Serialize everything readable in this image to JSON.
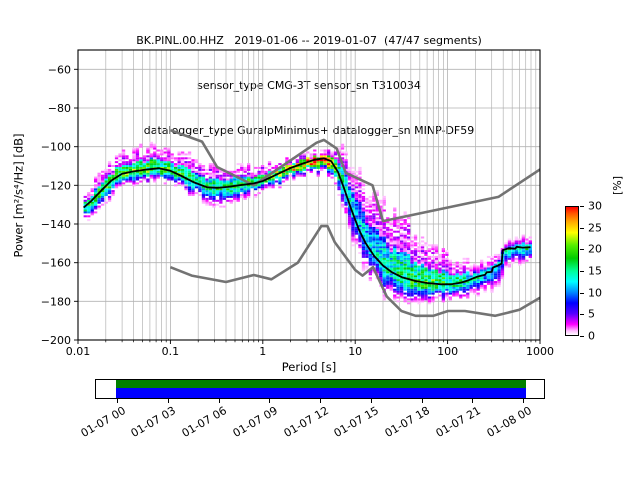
{
  "title": {
    "line1": "BK.PINL.00.HHZ   2019-01-06 -- 2019-01-07  (47/47 segments)",
    "line2": "sensor_type CMG-3T sensor_sn T310034",
    "line3": "datalogger_type GuralpMinimus+ datalogger_sn MINP-DF59"
  },
  "chart_data": {
    "type": "heatmap",
    "title": "BK.PINL.00.HHZ   2019-01-06 -- 2019-01-07  (47/47 segments)",
    "subtitle1": "sensor_type CMG-3T sensor_sn T310034",
    "subtitle2": "datalogger_type GuralpMinimus+ datalogger_sn MINP-DF59",
    "xlabel": "Period [s]",
    "ylabel": "Power [m²/s⁴/Hz] [dB]",
    "xscale": "log",
    "xlim": [
      0.01,
      1000
    ],
    "ylim": [
      -200,
      -50
    ],
    "grid": true,
    "x_tick_labels": [
      "0.01",
      "0.1",
      "1",
      "10",
      "100",
      "1000"
    ],
    "x_tick_values": [
      0.01,
      0.1,
      1,
      10,
      100,
      1000
    ],
    "y_tick_labels": [
      "−60",
      "−80",
      "−100",
      "−120",
      "−140",
      "−160",
      "−180",
      "−200"
    ],
    "y_tick_values": [
      -60,
      -80,
      -100,
      -120,
      -140,
      -160,
      -180,
      -200
    ],
    "colorbar": {
      "label": "[%]",
      "tick_labels": [
        "0",
        "5",
        "10",
        "15",
        "20",
        "25",
        "30"
      ],
      "tick_values": [
        0,
        5,
        10,
        15,
        20,
        25,
        30
      ],
      "range": [
        0,
        30
      ],
      "stops": [
        [
          0,
          "#ffffff"
        ],
        [
          1,
          "#ffbbff"
        ],
        [
          2.5,
          "#ff00ff"
        ],
        [
          5,
          "#5500ff"
        ],
        [
          7.5,
          "#0000ff"
        ],
        [
          10,
          "#0088ff"
        ],
        [
          12.5,
          "#00ffff"
        ],
        [
          15,
          "#00ff99"
        ],
        [
          18,
          "#00cc00"
        ],
        [
          21,
          "#55ee00"
        ],
        [
          24,
          "#ffff00"
        ],
        [
          26.5,
          "#ffaa00"
        ],
        [
          28.5,
          "#ff5500"
        ],
        [
          30,
          "#ff0000"
        ]
      ]
    },
    "noise_models": {
      "color": "#737373",
      "nhnm": [
        [
          0.1,
          -91.5
        ],
        [
          0.22,
          -97.4
        ],
        [
          0.32,
          -110.5
        ],
        [
          0.8,
          -120.0
        ],
        [
          3.8,
          -98.0
        ],
        [
          4.6,
          -96.5
        ],
        [
          6.3,
          -101.0
        ],
        [
          7.9,
          -113.5
        ],
        [
          15.4,
          -120.0
        ],
        [
          20.0,
          -138.5
        ],
        [
          354.8,
          -126.0
        ],
        [
          1000,
          -111.8
        ]
      ],
      "nlnm": [
        [
          0.1,
          -162.36
        ],
        [
          0.17,
          -166.7
        ],
        [
          0.4,
          -170.0
        ],
        [
          0.8,
          -166.4
        ],
        [
          1.24,
          -168.6
        ],
        [
          2.4,
          -159.98
        ],
        [
          4.3,
          -141.1
        ],
        [
          5.0,
          -141.1
        ],
        [
          6.0,
          -149.36
        ],
        [
          10.0,
          -163.79
        ],
        [
          12.0,
          -166.7
        ],
        [
          15.6,
          -162.28
        ],
        [
          21.9,
          -177.43
        ],
        [
          31.6,
          -185.0
        ],
        [
          45.0,
          -187.5
        ],
        [
          70.0,
          -187.5
        ],
        [
          101.0,
          -185.0
        ],
        [
          154.0,
          -185.0
        ],
        [
          328.0,
          -187.5
        ],
        [
          600.0,
          -184.4
        ],
        [
          1000,
          -178.1
        ]
      ]
    },
    "mode_line": {
      "color": "#000000",
      "points": [
        [
          0.0115,
          -131.5
        ],
        [
          0.014,
          -128
        ],
        [
          0.018,
          -122.5
        ],
        [
          0.023,
          -117.5
        ],
        [
          0.03,
          -114
        ],
        [
          0.04,
          -112.8
        ],
        [
          0.055,
          -111.8
        ],
        [
          0.075,
          -111.2
        ],
        [
          0.1,
          -112.5
        ],
        [
          0.13,
          -115
        ],
        [
          0.18,
          -118.5
        ],
        [
          0.25,
          -121
        ],
        [
          0.32,
          -121.3
        ],
        [
          0.42,
          -120.8
        ],
        [
          0.55,
          -120
        ],
        [
          0.8,
          -119
        ],
        [
          1.0,
          -117.8
        ],
        [
          1.4,
          -114.5
        ],
        [
          2.0,
          -111
        ],
        [
          2.8,
          -108.5
        ],
        [
          3.6,
          -106.8
        ],
        [
          4.6,
          -106
        ],
        [
          5.5,
          -107.5
        ],
        [
          6.5,
          -113
        ],
        [
          7.5,
          -121
        ],
        [
          9,
          -132
        ],
        [
          11,
          -143
        ],
        [
          13,
          -150
        ],
        [
          16,
          -156.5
        ],
        [
          20,
          -161.5
        ],
        [
          25,
          -165
        ],
        [
          32,
          -167.5
        ],
        [
          45,
          -169.5
        ],
        [
          60,
          -170.5
        ],
        [
          85,
          -171.2
        ],
        [
          110,
          -171.2
        ],
        [
          140,
          -170.3
        ],
        [
          170,
          -169
        ],
        [
          210,
          -167.2
        ],
        [
          255,
          -166.2
        ],
        [
          265,
          -165
        ],
        [
          300,
          -164.8
        ],
        [
          310,
          -162.5
        ],
        [
          350,
          -161.5
        ],
        [
          385,
          -160.5
        ],
        [
          395,
          -153.5
        ],
        [
          460,
          -152.5
        ],
        [
          540,
          -152.8
        ],
        [
          560,
          -151.8
        ],
        [
          650,
          -152.2
        ],
        [
          790,
          -152
        ]
      ]
    },
    "histogram": {
      "period_range": [
        0.0115,
        790
      ],
      "period_step_octaves": 0.125,
      "db_bin_width": 1,
      "columns_mode_up_down_peakpct": [
        [
          0.0115,
          -131.5,
          7,
          7,
          16
        ],
        [
          0.016,
          -124,
          9,
          8,
          18
        ],
        [
          0.025,
          -115.5,
          10,
          7,
          20
        ],
        [
          0.04,
          -112.5,
          10,
          6,
          20
        ],
        [
          0.07,
          -111,
          11,
          6,
          18
        ],
        [
          0.1,
          -112.8,
          11,
          7,
          18
        ],
        [
          0.15,
          -116.5,
          12,
          7,
          16
        ],
        [
          0.25,
          -121.3,
          11,
          8,
          16
        ],
        [
          0.4,
          -120.8,
          10,
          8,
          16
        ],
        [
          0.7,
          -119,
          8,
          7,
          18
        ],
        [
          1.2,
          -115.5,
          6,
          6,
          22
        ],
        [
          2.0,
          -111,
          5,
          5,
          26
        ],
        [
          3.0,
          -108,
          4.5,
          5.5,
          30
        ],
        [
          4.6,
          -106,
          4,
          7,
          30
        ],
        [
          5.5,
          -108,
          7,
          11,
          24
        ],
        [
          6.5,
          -114,
          13,
          13,
          16
        ],
        [
          8.0,
          -124,
          20,
          14,
          13
        ],
        [
          10,
          -138,
          25,
          18,
          12
        ],
        [
          14,
          -151,
          28,
          16,
          12
        ],
        [
          20,
          -161.5,
          30,
          15,
          14
        ],
        [
          30,
          -167,
          28,
          12,
          16
        ],
        [
          50,
          -170,
          24,
          9,
          18
        ],
        [
          80,
          -171.5,
          17,
          8,
          18
        ],
        [
          120,
          -170.5,
          11,
          8,
          16
        ],
        [
          180,
          -168.5,
          8,
          8,
          14
        ],
        [
          260,
          -166,
          7,
          8,
          12
        ],
        [
          340,
          -161.5,
          6,
          10,
          12
        ],
        [
          420,
          -153,
          5,
          9,
          14
        ],
        [
          600,
          -152,
          5,
          8,
          15
        ],
        [
          790,
          -152,
          5,
          8,
          15
        ]
      ]
    },
    "grid_color": "#b3b3b3"
  },
  "timeline": {
    "labels": [
      "01-07 00",
      "01-07 03",
      "01-07 06",
      "01-07 09",
      "01-07 12",
      "01-07 15",
      "01-07 18",
      "01-07 21",
      "01-08 00"
    ],
    "bar_top_color": "#008000",
    "bar_bottom_color": "#0000ff"
  }
}
